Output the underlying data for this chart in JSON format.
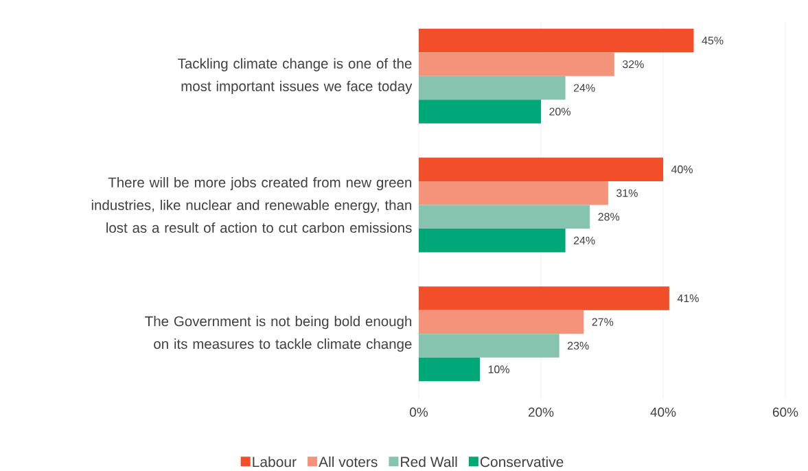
{
  "chart_data": {
    "type": "bar",
    "orientation": "horizontal",
    "categories": [
      "Tackling climate change is one of the most important issues we face today",
      "There will be more jobs created from new green industries, like nuclear and renewable energy, than lost as a result of action to cut carbon emissions",
      "The Government is not being bold enough on its measures to tackle climate change"
    ],
    "series": [
      {
        "name": "Labour",
        "color": "#f24e2a",
        "values": [
          45,
          40,
          41
        ],
        "value_labels": [
          "45%",
          "40%",
          "41%"
        ]
      },
      {
        "name": "All voters",
        "color": "#f5927a",
        "values": [
          32,
          31,
          27
        ],
        "value_labels": [
          "32%",
          "31%",
          "27%"
        ]
      },
      {
        "name": "Red Wall",
        "color": "#86c4b0",
        "values": [
          24,
          28,
          23
        ],
        "value_labels": [
          "24%",
          "28%",
          "23%"
        ]
      },
      {
        "name": "Conservative",
        "color": "#00a877",
        "values": [
          20,
          24,
          10
        ],
        "value_labels": [
          "20%",
          "24%",
          "10%"
        ]
      }
    ],
    "xlim": [
      0,
      60
    ],
    "xticks": [
      {
        "value": 0,
        "label": "0%"
      },
      {
        "value": 20,
        "label": "20%"
      },
      {
        "value": 40,
        "label": "40%"
      },
      {
        "value": 60,
        "label": "60%"
      }
    ],
    "grid": "x",
    "legend": "bottom"
  }
}
